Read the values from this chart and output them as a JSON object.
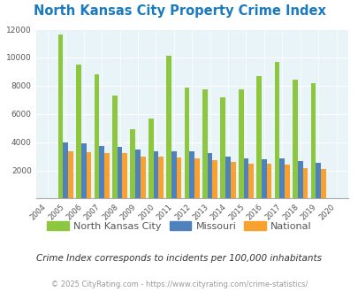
{
  "title": "North Kansas City Property Crime Index",
  "years": [
    2004,
    2005,
    2006,
    2007,
    2008,
    2009,
    2010,
    2011,
    2012,
    2013,
    2014,
    2015,
    2016,
    2017,
    2018,
    2019,
    2020
  ],
  "nkc": [
    0,
    11600,
    9500,
    8800,
    7300,
    4900,
    5650,
    10100,
    7850,
    7750,
    7200,
    7750,
    8650,
    9650,
    8400,
    8200,
    0
  ],
  "missouri": [
    0,
    4000,
    3900,
    3750,
    3650,
    3500,
    3350,
    3350,
    3350,
    3200,
    2950,
    2850,
    2800,
    2850,
    2650,
    2550,
    0
  ],
  "national": [
    0,
    3350,
    3300,
    3200,
    3200,
    3000,
    2950,
    2900,
    2850,
    2700,
    2600,
    2500,
    2500,
    2400,
    2150,
    2100,
    0
  ],
  "nkc_color": "#8dc63f",
  "missouri_color": "#4f81bd",
  "national_color": "#f9a12e",
  "bg_color": "#e8f4f8",
  "ylim": [
    0,
    12000
  ],
  "yticks": [
    0,
    2000,
    4000,
    6000,
    8000,
    10000,
    12000
  ],
  "footnote1": "Crime Index corresponds to incidents per 100,000 inhabitants",
  "footnote2": "© 2025 CityRating.com - https://www.cityrating.com/crime-statistics/",
  "title_color": "#1a7abf",
  "footnote1_color": "#333333",
  "footnote2_color": "#999999",
  "legend_label_color": "#555555"
}
